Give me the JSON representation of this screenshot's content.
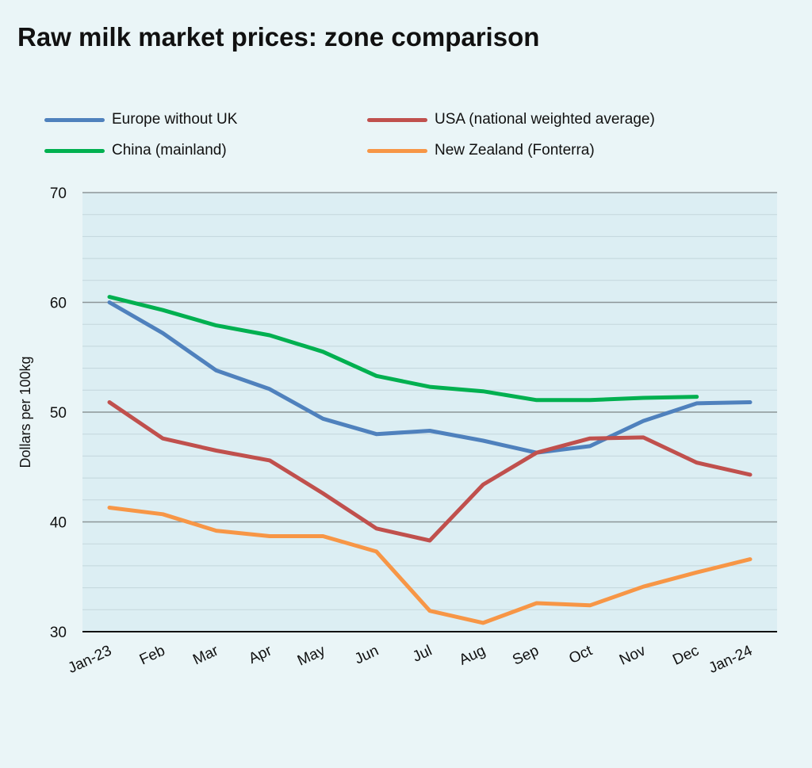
{
  "chart_data": {
    "type": "line",
    "title": "Raw milk market prices: zone comparison",
    "ylabel": "Dollars per 100kg",
    "xlabel": "",
    "ylim": [
      30,
      70
    ],
    "yticks": [
      30,
      40,
      50,
      60,
      70
    ],
    "minor_grid_step": 2,
    "grid": true,
    "legend_position": "top",
    "categories": [
      "Jan-23",
      "Feb",
      "Mar",
      "Apr",
      "May",
      "Jun",
      "Jul",
      "Aug",
      "Sep",
      "Oct",
      "Nov",
      "Dec",
      "Jan-24"
    ],
    "series": [
      {
        "name": "Europe without UK",
        "color": "#4f81bd",
        "values": [
          60.0,
          57.2,
          53.8,
          52.1,
          49.4,
          48.0,
          48.3,
          47.4,
          46.3,
          46.9,
          49.2,
          50.8,
          50.9
        ]
      },
      {
        "name": "USA (national weighted average)",
        "color": "#c0504d",
        "values": [
          50.9,
          47.6,
          46.5,
          45.6,
          42.6,
          39.4,
          38.3,
          43.4,
          46.3,
          47.6,
          47.7,
          45.4,
          44.3
        ]
      },
      {
        "name": "China (mainland)",
        "color": "#00b050",
        "values": [
          60.5,
          59.3,
          57.9,
          57.0,
          55.5,
          53.3,
          52.3,
          51.9,
          51.1,
          51.1,
          51.3,
          51.4,
          null
        ]
      },
      {
        "name": "New Zealand (Fonterra)",
        "color": "#f79646",
        "values": [
          41.3,
          40.7,
          39.2,
          38.7,
          38.7,
          37.3,
          31.9,
          30.8,
          32.6,
          32.4,
          34.1,
          35.4,
          36.6
        ]
      }
    ]
  }
}
